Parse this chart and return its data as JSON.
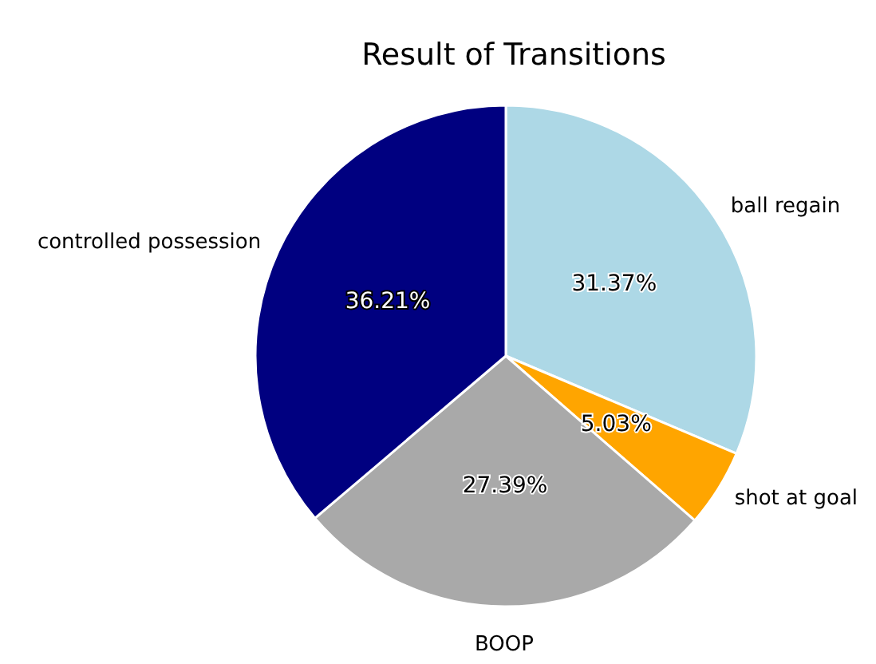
{
  "chart_data": {
    "type": "pie",
    "title": "Result of Transitions",
    "categories": [
      "ball regain",
      "shot at goal",
      "BOOP",
      "controlled possession"
    ],
    "values": [
      31.37,
      5.03,
      27.39,
      36.21
    ],
    "colors": [
      "#add8e6",
      "#ffa500",
      "#a9a9a9",
      "#000080"
    ],
    "value_labels": [
      "31.37%",
      "5.03%",
      "27.39%",
      "36.21%"
    ],
    "legend": false
  }
}
